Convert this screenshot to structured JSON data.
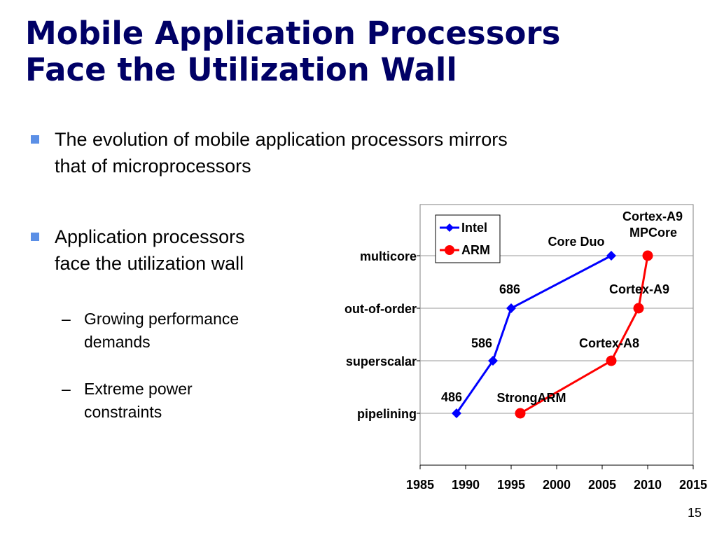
{
  "slide": {
    "title_line1": "Mobile Application Processors",
    "title_line2": "Face the Utilization Wall",
    "bullet1_line1": "The evolution of mobile application processors mirrors",
    "bullet1_line2": "that of microprocessors",
    "bullet2_line1": "Application processors",
    "bullet2_line2": "face the utilization wall",
    "sub1_line1": "Growing performance",
    "sub1_line2": "demands",
    "sub2_line1": "Extreme power",
    "sub2_line2": "constraints",
    "dash": "–",
    "page_number": "15"
  },
  "chart_data": {
    "type": "line",
    "title": "",
    "xlabel": "",
    "ylabel": "",
    "xlim": [
      1985,
      2015
    ],
    "x_ticks": [
      "1985",
      "1990",
      "1995",
      "2000",
      "2005",
      "2010",
      "2015"
    ],
    "y_categories": [
      "pipelining",
      "superscalar",
      "out-of-order",
      "multicore"
    ],
    "grid": true,
    "legend_position": "top-left",
    "series": [
      {
        "name": "Intel",
        "color": "#0000ff",
        "marker": "diamond",
        "points": [
          {
            "x": 1989,
            "y": "pipelining",
            "label": "486"
          },
          {
            "x": 1993,
            "y": "superscalar",
            "label": "586"
          },
          {
            "x": 1995,
            "y": "out-of-order",
            "label": "686"
          },
          {
            "x": 2006,
            "y": "multicore",
            "label": "Core Duo"
          }
        ]
      },
      {
        "name": "ARM",
        "color": "#ff0000",
        "marker": "circle",
        "points": [
          {
            "x": 1996,
            "y": "pipelining",
            "label": "StrongARM"
          },
          {
            "x": 2006,
            "y": "superscalar",
            "label": "Cortex-A8"
          },
          {
            "x": 2009,
            "y": "out-of-order",
            "label": "Cortex-A9"
          },
          {
            "x": 2010,
            "y": "multicore",
            "label": "Cortex-A9 MPCore"
          }
        ]
      }
    ]
  }
}
